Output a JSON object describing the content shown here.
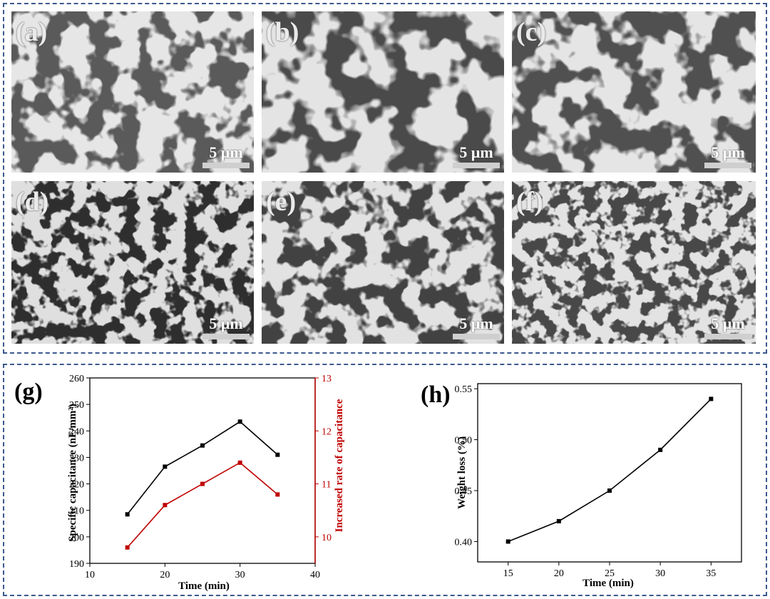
{
  "panels": [
    {
      "label": "(a)",
      "scale": "5 μm"
    },
    {
      "label": "(b)",
      "scale": "5 μm"
    },
    {
      "label": "(c)",
      "scale": "5 μm"
    },
    {
      "label": "(d)",
      "scale": "5 μm"
    },
    {
      "label": "(e)",
      "scale": "5 μm"
    },
    {
      "label": "(f)",
      "scale": "5 μm"
    }
  ],
  "colors": {
    "border": "#3c5a8c",
    "series_black": "#000000",
    "series_red": "#c00000"
  },
  "chart_data": [
    {
      "type": "line",
      "panel_label": "(g)",
      "xlabel": "Time (min)",
      "ylabel": "Specific capacitance (nF/mm²)",
      "y2label": "Increased rate of capacitance",
      "xlim": [
        10,
        40
      ],
      "ylim": [
        190,
        260
      ],
      "y2lim": [
        9.5,
        13
      ],
      "xticks": [
        "10",
        "20",
        "30",
        "40"
      ],
      "yticks": [
        "190",
        "200",
        "210",
        "220",
        "230",
        "240",
        "250",
        "260"
      ],
      "y2ticks": [
        "10",
        "11",
        "12",
        "13"
      ],
      "series": [
        {
          "axis": "left",
          "color": "#000000",
          "x": [
            15,
            20,
            25,
            30,
            35
          ],
          "y": [
            208.5,
            226.5,
            234.5,
            243.5,
            231
          ]
        },
        {
          "axis": "right",
          "color": "#c00000",
          "x": [
            15,
            20,
            25,
            30,
            35
          ],
          "y": [
            9.8,
            10.6,
            11.0,
            11.4,
            10.8
          ]
        }
      ]
    },
    {
      "type": "line",
      "panel_label": "(h)",
      "xlabel": "Time (min)",
      "ylabel": "Weight loss (%)",
      "xlim": [
        12,
        38
      ],
      "ylim": [
        0.38,
        0.555
      ],
      "xticks": [
        "15",
        "20",
        "25",
        "30",
        "35"
      ],
      "yticks": [
        "0.40",
        "0.45",
        "0.50",
        "0.55"
      ],
      "series": [
        {
          "color": "#000000",
          "x": [
            15,
            20,
            25,
            30,
            35
          ],
          "y": [
            0.4,
            0.42,
            0.45,
            0.49,
            0.54
          ]
        }
      ]
    }
  ]
}
